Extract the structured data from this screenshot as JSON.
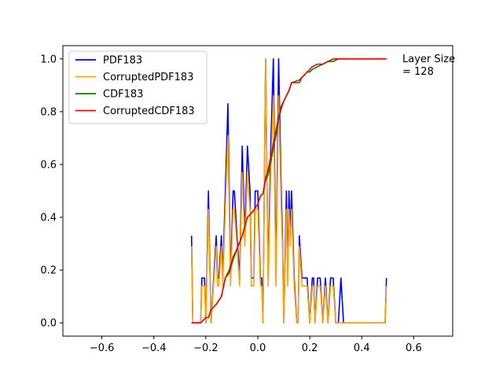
{
  "chart_data": {
    "type": "line",
    "title": "",
    "xlabel": "",
    "ylabel": "",
    "xlim": [
      -0.75,
      0.75
    ],
    "ylim": [
      -0.05,
      1.05
    ],
    "xticks": [
      -0.6,
      -0.4,
      -0.2,
      0.0,
      0.2,
      0.4,
      0.6
    ],
    "xtick_labels": [
      "−0.6",
      "−0.4",
      "−0.2",
      "0.0",
      "0.2",
      "0.4",
      "0.6"
    ],
    "yticks": [
      0.0,
      0.2,
      0.4,
      0.6,
      0.8,
      1.0
    ],
    "ytick_labels": [
      "0.0",
      "0.2",
      "0.4",
      "0.6",
      "0.8",
      "1.0"
    ],
    "grid": false,
    "legend_position": "upper-left",
    "annotation": {
      "lines": [
        "Layer Size",
        "= 128"
      ],
      "x": 0.56,
      "y": 1.0
    },
    "series": [
      {
        "name": "PDF183",
        "color": "#0000ff",
        "points": [
          [
            -0.255,
            0.33
          ],
          [
            -0.25,
            0.0
          ],
          [
            -0.22,
            0.0
          ],
          [
            -0.215,
            0.17
          ],
          [
            -0.205,
            0.17
          ],
          [
            -0.2,
            0.0
          ],
          [
            -0.19,
            0.5
          ],
          [
            -0.18,
            0.0
          ],
          [
            -0.16,
            0.33
          ],
          [
            -0.155,
            0.17
          ],
          [
            -0.15,
            0.17
          ],
          [
            -0.14,
            0.33
          ],
          [
            -0.135,
            0.17
          ],
          [
            -0.125,
            0.5
          ],
          [
            -0.115,
            0.83
          ],
          [
            -0.105,
            0.17
          ],
          [
            -0.095,
            0.5
          ],
          [
            -0.09,
            0.5
          ],
          [
            -0.08,
            0.33
          ],
          [
            -0.07,
            0.17
          ],
          [
            -0.06,
            0.67
          ],
          [
            -0.05,
            0.33
          ],
          [
            -0.04,
            0.67
          ],
          [
            -0.03,
            0.5
          ],
          [
            -0.025,
            0.17
          ],
          [
            -0.015,
            0.17
          ],
          [
            -0.01,
            0.5
          ],
          [
            0.0,
            0.5
          ],
          [
            0.005,
            0.33
          ],
          [
            0.01,
            0.17
          ],
          [
            0.015,
            0.17
          ],
          [
            0.02,
            0.0
          ],
          [
            0.03,
            1.0
          ],
          [
            0.04,
            0.17
          ],
          [
            0.05,
            0.67
          ],
          [
            0.06,
            1.0
          ],
          [
            0.07,
            0.17
          ],
          [
            0.08,
            1.0
          ],
          [
            0.09,
            0.5
          ],
          [
            0.095,
            0.33
          ],
          [
            0.1,
            0.0
          ],
          [
            0.11,
            0.5
          ],
          [
            0.115,
            0.17
          ],
          [
            0.12,
            0.5
          ],
          [
            0.125,
            0.33
          ],
          [
            0.13,
            0.5
          ],
          [
            0.14,
            0.17
          ],
          [
            0.15,
            0.0
          ],
          [
            0.155,
            0.0
          ],
          [
            0.16,
            0.33
          ],
          [
            0.17,
            0.17
          ],
          [
            0.19,
            0.17
          ],
          [
            0.2,
            0.0
          ],
          [
            0.21,
            0.17
          ],
          [
            0.215,
            0.17
          ],
          [
            0.22,
            0.0
          ],
          [
            0.23,
            0.17
          ],
          [
            0.24,
            0.17
          ],
          [
            0.25,
            0.0
          ],
          [
            0.26,
            0.17
          ],
          [
            0.27,
            0.0
          ],
          [
            0.28,
            0.17
          ],
          [
            0.29,
            0.17
          ],
          [
            0.3,
            0.0
          ],
          [
            0.31,
            0.0
          ],
          [
            0.32,
            0.17
          ],
          [
            0.33,
            0.0
          ],
          [
            0.49,
            0.0
          ],
          [
            0.495,
            0.17
          ]
        ]
      },
      {
        "name": "CorruptedPDF183",
        "color": "#ffa500",
        "points": [
          [
            -0.255,
            0.29
          ],
          [
            -0.25,
            0.0
          ],
          [
            -0.22,
            0.0
          ],
          [
            -0.215,
            0.14
          ],
          [
            -0.205,
            0.14
          ],
          [
            -0.2,
            0.0
          ],
          [
            -0.19,
            0.43
          ],
          [
            -0.18,
            0.0
          ],
          [
            -0.16,
            0.29
          ],
          [
            -0.155,
            0.14
          ],
          [
            -0.15,
            0.14
          ],
          [
            -0.14,
            0.29
          ],
          [
            -0.135,
            0.14
          ],
          [
            -0.125,
            0.43
          ],
          [
            -0.115,
            0.71
          ],
          [
            -0.105,
            0.14
          ],
          [
            -0.095,
            0.43
          ],
          [
            -0.09,
            0.43
          ],
          [
            -0.08,
            0.29
          ],
          [
            -0.07,
            0.14
          ],
          [
            -0.06,
            0.57
          ],
          [
            -0.05,
            0.29
          ],
          [
            -0.04,
            0.57
          ],
          [
            -0.03,
            0.43
          ],
          [
            -0.025,
            0.14
          ],
          [
            -0.015,
            0.14
          ],
          [
            -0.01,
            0.43
          ],
          [
            0.0,
            0.43
          ],
          [
            0.005,
            0.29
          ],
          [
            0.01,
            0.14
          ],
          [
            0.015,
            0.14
          ],
          [
            0.02,
            0.0
          ],
          [
            0.03,
            1.0
          ],
          [
            0.04,
            0.14
          ],
          [
            0.05,
            0.57
          ],
          [
            0.06,
            0.86
          ],
          [
            0.07,
            0.14
          ],
          [
            0.08,
            0.86
          ],
          [
            0.09,
            0.43
          ],
          [
            0.095,
            0.29
          ],
          [
            0.1,
            0.0
          ],
          [
            0.11,
            0.43
          ],
          [
            0.115,
            0.14
          ],
          [
            0.12,
            0.43
          ],
          [
            0.125,
            0.29
          ],
          [
            0.13,
            0.43
          ],
          [
            0.14,
            0.14
          ],
          [
            0.15,
            0.0
          ],
          [
            0.155,
            0.0
          ],
          [
            0.16,
            0.29
          ],
          [
            0.17,
            0.14
          ],
          [
            0.19,
            0.14
          ],
          [
            0.2,
            0.0
          ],
          [
            0.21,
            0.14
          ],
          [
            0.215,
            0.14
          ],
          [
            0.22,
            0.0
          ],
          [
            0.23,
            0.14
          ],
          [
            0.24,
            0.14
          ],
          [
            0.25,
            0.0
          ],
          [
            0.26,
            0.14
          ],
          [
            0.27,
            0.0
          ],
          [
            0.28,
            0.14
          ],
          [
            0.29,
            0.14
          ],
          [
            0.3,
            0.0
          ],
          [
            0.31,
            0.0
          ],
          [
            0.32,
            0.0
          ],
          [
            0.33,
            0.0
          ],
          [
            0.49,
            0.0
          ],
          [
            0.495,
            0.14
          ]
        ]
      },
      {
        "name": "CDF183",
        "color": "#008000",
        "points": [
          [
            -0.255,
            0.0
          ],
          [
            -0.22,
            0.0
          ],
          [
            -0.2,
            0.02
          ],
          [
            -0.19,
            0.02
          ],
          [
            -0.18,
            0.05
          ],
          [
            -0.16,
            0.07
          ],
          [
            -0.14,
            0.1
          ],
          [
            -0.125,
            0.17
          ],
          [
            -0.11,
            0.2
          ],
          [
            -0.095,
            0.25
          ],
          [
            -0.08,
            0.28
          ],
          [
            -0.06,
            0.33
          ],
          [
            -0.04,
            0.4
          ],
          [
            -0.02,
            0.42
          ],
          [
            0.0,
            0.45
          ],
          [
            0.01,
            0.48
          ],
          [
            0.02,
            0.49
          ],
          [
            0.03,
            0.54
          ],
          [
            0.04,
            0.56
          ],
          [
            0.05,
            0.61
          ],
          [
            0.06,
            0.66
          ],
          [
            0.07,
            0.71
          ],
          [
            0.08,
            0.77
          ],
          [
            0.09,
            0.81
          ],
          [
            0.1,
            0.84
          ],
          [
            0.11,
            0.86
          ],
          [
            0.12,
            0.88
          ],
          [
            0.13,
            0.91
          ],
          [
            0.16,
            0.92
          ],
          [
            0.17,
            0.93
          ],
          [
            0.18,
            0.94
          ],
          [
            0.19,
            0.95
          ],
          [
            0.2,
            0.95
          ],
          [
            0.21,
            0.96
          ],
          [
            0.23,
            0.97
          ],
          [
            0.25,
            0.98
          ],
          [
            0.27,
            0.99
          ],
          [
            0.29,
            0.99
          ],
          [
            0.31,
            1.0
          ],
          [
            0.49,
            1.0
          ],
          [
            0.495,
            1.0
          ]
        ]
      },
      {
        "name": "CorruptedCDF183",
        "color": "#ff0000",
        "points": [
          [
            -0.255,
            0.0
          ],
          [
            -0.22,
            0.0
          ],
          [
            -0.2,
            0.02
          ],
          [
            -0.19,
            0.02
          ],
          [
            -0.18,
            0.05
          ],
          [
            -0.16,
            0.07
          ],
          [
            -0.14,
            0.1
          ],
          [
            -0.125,
            0.17
          ],
          [
            -0.11,
            0.19
          ],
          [
            -0.095,
            0.24
          ],
          [
            -0.08,
            0.28
          ],
          [
            -0.06,
            0.33
          ],
          [
            -0.04,
            0.4
          ],
          [
            -0.02,
            0.42
          ],
          [
            0.0,
            0.45
          ],
          [
            0.01,
            0.48
          ],
          [
            0.02,
            0.49
          ],
          [
            0.03,
            0.55
          ],
          [
            0.04,
            0.58
          ],
          [
            0.05,
            0.63
          ],
          [
            0.06,
            0.68
          ],
          [
            0.07,
            0.73
          ],
          [
            0.08,
            0.78
          ],
          [
            0.09,
            0.82
          ],
          [
            0.1,
            0.84
          ],
          [
            0.11,
            0.86
          ],
          [
            0.12,
            0.88
          ],
          [
            0.13,
            0.91
          ],
          [
            0.16,
            0.91
          ],
          [
            0.17,
            0.93
          ],
          [
            0.18,
            0.94
          ],
          [
            0.19,
            0.95
          ],
          [
            0.2,
            0.96
          ],
          [
            0.21,
            0.97
          ],
          [
            0.23,
            0.98
          ],
          [
            0.25,
            0.98
          ],
          [
            0.27,
            0.99
          ],
          [
            0.29,
            1.0
          ],
          [
            0.31,
            1.0
          ],
          [
            0.49,
            1.0
          ],
          [
            0.495,
            1.0
          ]
        ]
      }
    ]
  }
}
